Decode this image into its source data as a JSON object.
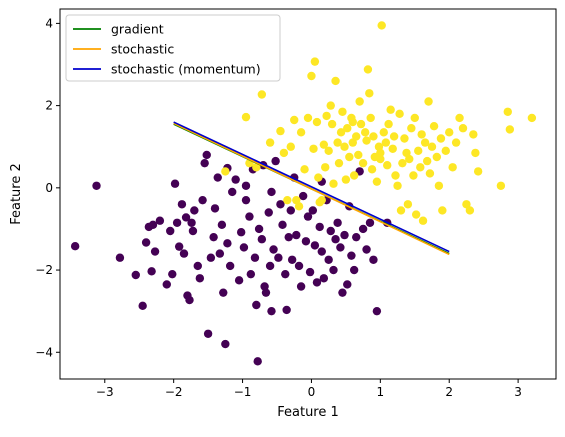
{
  "chart_data": {
    "type": "scatter",
    "xlabel": "Feature 1",
    "ylabel": "Feature 2",
    "xlim": [
      -3.65,
      3.55
    ],
    "ylim": [
      -4.65,
      4.35
    ],
    "xticks": [
      -3,
      -2,
      -1,
      0,
      1,
      2,
      3
    ],
    "yticks": [
      -4,
      -2,
      0,
      2,
      4
    ],
    "legend_position": "top-left",
    "scatter_colors": {
      "class_0": "#440154",
      "class_1": "#fde725"
    },
    "class_0_points": [
      [
        -3.43,
        -1.42
      ],
      [
        -3.12,
        0.05
      ],
      [
        -2.78,
        -1.7
      ],
      [
        -2.55,
        -2.12
      ],
      [
        -2.45,
        -2.87
      ],
      [
        -2.4,
        -1.33
      ],
      [
        -2.36,
        -0.95
      ],
      [
        -2.32,
        -2.03
      ],
      [
        -2.27,
        -1.55
      ],
      [
        -2.2,
        -0.8
      ],
      [
        -2.1,
        -2.35
      ],
      [
        -2.05,
        -1.05
      ],
      [
        -2.02,
        -2.1
      ],
      [
        -1.98,
        0.1
      ],
      [
        -1.95,
        -0.85
      ],
      [
        -1.92,
        -1.43
      ],
      [
        -1.88,
        -0.4
      ],
      [
        -1.85,
        -1.6
      ],
      [
        -1.82,
        -0.72
      ],
      [
        -1.8,
        -2.62
      ],
      [
        -1.77,
        -2.73
      ],
      [
        -1.74,
        -0.85
      ],
      [
        -1.72,
        -1.05
      ],
      [
        -1.7,
        -0.55
      ],
      [
        -1.65,
        -1.9
      ],
      [
        -1.62,
        -2.2
      ],
      [
        -1.58,
        -0.3
      ],
      [
        -1.55,
        0.6
      ],
      [
        -1.52,
        0.8
      ],
      [
        -1.5,
        -3.55
      ],
      [
        -1.46,
        -1.7
      ],
      [
        -1.42,
        -1.2
      ],
      [
        -1.4,
        -0.5
      ],
      [
        -1.36,
        0.25
      ],
      [
        -1.33,
        -1.6
      ],
      [
        -1.3,
        -0.9
      ],
      [
        -1.28,
        -2.55
      ],
      [
        -1.25,
        -3.8
      ],
      [
        -1.22,
        -1.35
      ],
      [
        -1.18,
        -1.9
      ],
      [
        -1.15,
        -0.1
      ],
      [
        -1.1,
        0.2
      ],
      [
        -1.05,
        -2.25
      ],
      [
        -1.02,
        -1.08
      ],
      [
        -0.98,
        -1.45
      ],
      [
        -0.95,
        -0.3
      ],
      [
        -0.9,
        -0.7
      ],
      [
        -0.88,
        -2.1
      ],
      [
        -0.85,
        0.45
      ],
      [
        -0.82,
        -1.7
      ],
      [
        -0.8,
        -2.85
      ],
      [
        -0.78,
        -4.22
      ],
      [
        -0.76,
        -1.0
      ],
      [
        -0.72,
        -1.25
      ],
      [
        -0.7,
        0.55
      ],
      [
        -0.68,
        -2.4
      ],
      [
        -0.66,
        -2.55
      ],
      [
        -0.62,
        -0.6
      ],
      [
        -0.6,
        -1.9
      ],
      [
        -0.58,
        -3.0
      ],
      [
        -0.55,
        -1.5
      ],
      [
        -0.52,
        0.65
      ],
      [
        -0.48,
        -1.7
      ],
      [
        -0.45,
        -0.4
      ],
      [
        -0.42,
        -0.9
      ],
      [
        -0.38,
        -2.1
      ],
      [
        -0.36,
        -2.97
      ],
      [
        -0.33,
        -1.2
      ],
      [
        -0.3,
        -0.55
      ],
      [
        -0.28,
        -1.75
      ],
      [
        -0.25,
        0.25
      ],
      [
        -0.22,
        -1.15
      ],
      [
        -0.18,
        -1.9
      ],
      [
        -0.15,
        -2.4
      ],
      [
        -0.12,
        -0.2
      ],
      [
        -0.08,
        -1.3
      ],
      [
        -0.05,
        -0.7
      ],
      [
        -0.02,
        -2.05
      ],
      [
        0.02,
        -0.55
      ],
      [
        0.05,
        -1.4
      ],
      [
        0.08,
        -2.3
      ],
      [
        0.12,
        -0.95
      ],
      [
        0.15,
        -1.55
      ],
      [
        0.18,
        -2.2
      ],
      [
        0.22,
        -0.3
      ],
      [
        0.25,
        -1.75
      ],
      [
        0.28,
        -1.05
      ],
      [
        0.32,
        -2.0
      ],
      [
        0.35,
        -1.25
      ],
      [
        0.38,
        -0.85
      ],
      [
        0.42,
        -1.45
      ],
      [
        0.45,
        -2.55
      ],
      [
        0.48,
        -1.15
      ],
      [
        0.52,
        -2.35
      ],
      [
        0.55,
        -0.45
      ],
      [
        0.58,
        -1.65
      ],
      [
        0.62,
        -2.0
      ],
      [
        0.65,
        -1.2
      ],
      [
        0.7,
        0.4
      ],
      [
        0.75,
        -1.0
      ],
      [
        0.8,
        -1.5
      ],
      [
        0.85,
        -0.85
      ],
      [
        0.9,
        -1.75
      ],
      [
        0.95,
        -3.0
      ],
      [
        1.1,
        -0.85
      ],
      [
        -1.22,
        0.48
      ],
      [
        -0.58,
        -0.1
      ],
      [
        0.15,
        0.15
      ],
      [
        -0.95,
        0.05
      ],
      [
        -2.3,
        -0.9
      ]
    ],
    "class_1_points": [
      [
        -1.25,
        0.4
      ],
      [
        -0.95,
        1.72
      ],
      [
        -0.9,
        0.6
      ],
      [
        -0.8,
        0.5
      ],
      [
        -0.72,
        2.27
      ],
      [
        -0.6,
        1.1
      ],
      [
        -0.45,
        1.38
      ],
      [
        -0.4,
        0.85
      ],
      [
        -0.35,
        -0.3
      ],
      [
        -0.3,
        1.0
      ],
      [
        -0.25,
        1.65
      ],
      [
        -0.22,
        -0.3
      ],
      [
        -0.18,
        -0.45
      ],
      [
        -0.15,
        1.35
      ],
      [
        -0.1,
        0.45
      ],
      [
        -0.05,
        1.7
      ],
      [
        0.0,
        2.72
      ],
      [
        0.03,
        0.95
      ],
      [
        0.05,
        3.07
      ],
      [
        0.08,
        1.6
      ],
      [
        0.1,
        0.25
      ],
      [
        0.12,
        -0.35
      ],
      [
        0.15,
        -0.3
      ],
      [
        0.18,
        1.05
      ],
      [
        0.2,
        0.5
      ],
      [
        0.22,
        1.75
      ],
      [
        0.25,
        0.9
      ],
      [
        0.28,
        2.0
      ],
      [
        0.3,
        1.55
      ],
      [
        0.32,
        0.1
      ],
      [
        0.35,
        2.6
      ],
      [
        0.38,
        1.1
      ],
      [
        0.4,
        0.6
      ],
      [
        0.43,
        1.35
      ],
      [
        0.45,
        1.85
      ],
      [
        0.48,
        1.0
      ],
      [
        0.5,
        0.2
      ],
      [
        0.52,
        1.45
      ],
      [
        0.55,
        0.75
      ],
      [
        0.58,
        1.7
      ],
      [
        0.6,
        1.1
      ],
      [
        0.62,
        0.3
      ],
      [
        0.65,
        1.25
      ],
      [
        0.68,
        0.8
      ],
      [
        0.7,
        2.1
      ],
      [
        0.72,
        1.55
      ],
      [
        0.75,
        0.6
      ],
      [
        0.78,
        1.35
      ],
      [
        0.8,
        1.15
      ],
      [
        0.82,
        2.88
      ],
      [
        0.84,
        2.3
      ],
      [
        0.86,
        1.7
      ],
      [
        0.88,
        0.45
      ],
      [
        0.9,
        1.25
      ],
      [
        0.92,
        0.75
      ],
      [
        0.95,
        0.15
      ],
      [
        0.98,
        1.0
      ],
      [
        1.0,
        0.85
      ],
      [
        1.02,
        3.95
      ],
      [
        1.05,
        1.35
      ],
      [
        1.08,
        1.1
      ],
      [
        1.1,
        0.55
      ],
      [
        1.12,
        1.55
      ],
      [
        1.15,
        1.9
      ],
      [
        1.18,
        0.95
      ],
      [
        1.2,
        1.25
      ],
      [
        1.22,
        0.3
      ],
      [
        1.25,
        0.05
      ],
      [
        1.28,
        1.8
      ],
      [
        1.3,
        -0.55
      ],
      [
        1.32,
        0.6
      ],
      [
        1.35,
        1.2
      ],
      [
        1.38,
        0.85
      ],
      [
        1.4,
        -0.4
      ],
      [
        1.42,
        0.7
      ],
      [
        1.45,
        1.45
      ],
      [
        1.48,
        0.3
      ],
      [
        1.5,
        1.7
      ],
      [
        1.52,
        -0.65
      ],
      [
        1.55,
        0.9
      ],
      [
        1.58,
        0.5
      ],
      [
        1.6,
        1.3
      ],
      [
        1.62,
        -0.8
      ],
      [
        1.65,
        1.1
      ],
      [
        1.68,
        0.65
      ],
      [
        1.7,
        2.1
      ],
      [
        1.72,
        0.35
      ],
      [
        1.75,
        1.0
      ],
      [
        1.78,
        1.5
      ],
      [
        1.82,
        0.75
      ],
      [
        1.85,
        0.05
      ],
      [
        1.88,
        1.2
      ],
      [
        1.9,
        -0.55
      ],
      [
        1.95,
        0.9
      ],
      [
        2.0,
        1.35
      ],
      [
        2.05,
        0.5
      ],
      [
        2.1,
        1.1
      ],
      [
        2.15,
        1.7
      ],
      [
        2.2,
        1.45
      ],
      [
        2.25,
        -0.4
      ],
      [
        2.3,
        -0.55
      ],
      [
        2.35,
        1.3
      ],
      [
        2.38,
        0.85
      ],
      [
        2.42,
        0.4
      ],
      [
        2.75,
        0.05
      ],
      [
        2.85,
        1.85
      ],
      [
        2.88,
        1.42
      ],
      [
        3.2,
        1.7
      ],
      [
        1.0,
        0.7
      ],
      [
        0.6,
        1.6
      ]
    ],
    "series": [
      {
        "name": "gradient",
        "color": "#008000",
        "x": [
          -2,
          2
        ],
        "y": [
          1.55,
          -1.6
        ]
      },
      {
        "name": "stochastic",
        "color": "#ffa500",
        "x": [
          -2,
          2
        ],
        "y": [
          1.57,
          -1.62
        ]
      },
      {
        "name": "stochastic (momentum)",
        "color": "#0000cd",
        "x": [
          -2,
          2
        ],
        "y": [
          1.6,
          -1.55
        ]
      }
    ]
  }
}
